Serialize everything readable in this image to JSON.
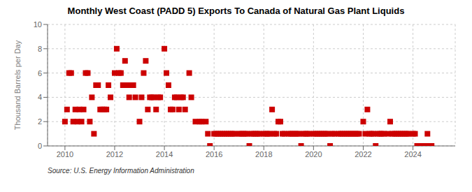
{
  "chart_data": {
    "type": "scatter",
    "title": "Monthly West Coast (PADD 5) Exports To Canada of Natural Gas Plant Liquids",
    "y_label": "Thousand Barrels per Day",
    "annotations": [
      "Source: U.S. Energy Information Administration"
    ],
    "color": "#cc0000",
    "marker": "square",
    "grid": true,
    "xlim": [
      2009.3,
      2025.7
    ],
    "xticks": [
      2010,
      2012,
      2014,
      2016,
      2018,
      2020,
      2022,
      2024
    ],
    "ylim": [
      0,
      10
    ],
    "yticks": [
      0,
      2,
      4,
      6,
      8,
      10
    ],
    "x": [
      2010.0,
      2010.083,
      2010.167,
      2010.25,
      2010.333,
      2010.417,
      2010.5,
      2010.583,
      2010.667,
      2010.75,
      2010.833,
      2010.917,
      2011.0,
      2011.083,
      2011.167,
      2011.25,
      2011.333,
      2011.417,
      2011.5,
      2011.583,
      2011.667,
      2011.75,
      2011.833,
      2012.0,
      2012.083,
      2012.167,
      2012.25,
      2012.333,
      2012.417,
      2012.5,
      2012.583,
      2012.667,
      2012.75,
      2012.833,
      2013.0,
      2013.083,
      2013.167,
      2013.25,
      2013.333,
      2013.417,
      2013.5,
      2013.583,
      2013.667,
      2013.75,
      2013.833,
      2014.0,
      2014.083,
      2014.167,
      2014.25,
      2014.333,
      2014.417,
      2014.5,
      2014.583,
      2014.667,
      2014.75,
      2014.833,
      2015.0,
      2015.083,
      2015.25,
      2015.417,
      2015.5,
      2015.667,
      2015.75,
      2015.833,
      2016.0,
      2016.083,
      2016.167,
      2016.25,
      2016.333,
      2016.417,
      2016.5,
      2016.583,
      2016.667,
      2016.75,
      2016.833,
      2017.0,
      2017.083,
      2017.167,
      2017.25,
      2017.333,
      2017.417,
      2017.5,
      2017.583,
      2017.667,
      2017.75,
      2017.833,
      2018.0,
      2018.083,
      2018.167,
      2018.25,
      2018.333,
      2018.417,
      2018.5,
      2018.583,
      2018.667,
      2018.75,
      2018.833,
      2019.0,
      2019.083,
      2019.167,
      2019.25,
      2019.333,
      2019.417,
      2019.5,
      2019.583,
      2019.667,
      2019.75,
      2019.833,
      2020.0,
      2020.083,
      2020.167,
      2020.25,
      2020.333,
      2020.417,
      2020.5,
      2020.583,
      2020.667,
      2020.75,
      2020.833,
      2021.0,
      2021.083,
      2021.167,
      2021.25,
      2021.333,
      2021.417,
      2021.5,
      2021.583,
      2021.667,
      2021.75,
      2021.833,
      2022.0,
      2022.083,
      2022.167,
      2022.25,
      2022.333,
      2022.417,
      2022.5,
      2022.583,
      2022.667,
      2022.75,
      2022.833,
      2023.0,
      2023.083,
      2023.167,
      2023.25,
      2023.333,
      2023.417,
      2023.5,
      2023.583,
      2023.667,
      2023.75,
      2023.833,
      2024.0,
      2024.083,
      2024.167,
      2024.25,
      2024.333,
      2024.417,
      2024.5,
      2024.583,
      2024.667,
      2024.75
    ],
    "values": [
      2,
      3,
      6,
      6,
      2,
      3,
      2,
      3,
      2,
      3,
      6,
      6,
      2,
      4,
      1,
      5,
      5,
      3,
      3,
      3,
      3,
      5,
      4,
      6,
      8,
      6,
      6,
      5,
      7,
      5,
      4,
      5,
      5,
      4,
      2,
      4,
      6,
      7,
      3,
      4,
      4,
      4,
      3,
      4,
      4,
      8,
      6,
      5,
      3,
      3,
      4,
      4,
      3,
      4,
      4,
      3,
      6,
      4,
      2,
      2,
      2,
      2,
      1,
      0,
      1,
      1,
      1,
      1,
      1,
      1,
      1,
      1,
      1,
      1,
      1,
      1,
      1,
      1,
      1,
      1,
      0,
      1,
      1,
      1,
      1,
      1,
      1,
      1,
      1,
      1,
      3,
      1,
      1,
      2,
      2,
      1,
      1,
      1,
      1,
      1,
      1,
      1,
      1,
      0,
      1,
      1,
      1,
      1,
      1,
      1,
      1,
      1,
      1,
      1,
      1,
      1,
      0,
      1,
      1,
      1,
      1,
      1,
      1,
      1,
      1,
      1,
      1,
      1,
      1,
      1,
      2,
      1,
      3,
      1,
      1,
      1,
      0,
      1,
      1,
      1,
      1,
      1,
      2,
      1,
      1,
      1,
      1,
      1,
      1,
      1,
      1,
      1,
      1,
      1,
      0,
      0,
      0,
      0,
      0,
      1,
      0,
      0
    ]
  }
}
